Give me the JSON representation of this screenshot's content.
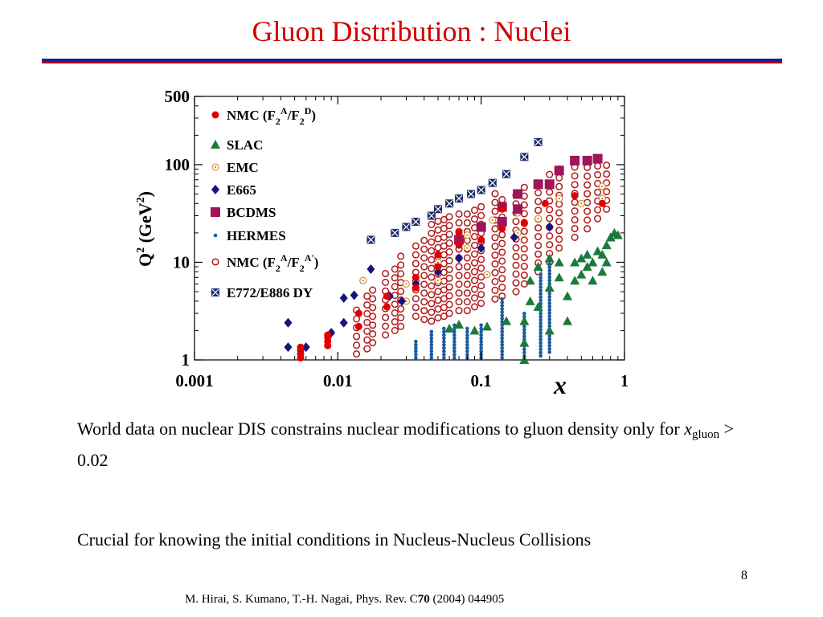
{
  "slide": {
    "title": "Gluon Distribution : Nuclei",
    "caption1_pre": "World data on nuclear DIS constrains nuclear modifications to gluon density only for ",
    "caption1_var": "x",
    "caption1_sub": "gluon",
    "caption1_post": " > 0.02",
    "caption2": "Crucial for knowing the initial conditions in Nucleus-Nucleus Collisions",
    "page_number": "8",
    "reference_pre": "M. Hirai, S. Kumano, T.-H. Nagai, Phys. Rev. C",
    "reference_vol": "70",
    "reference_post": " (2004) 044905"
  },
  "colors": {
    "title": "#d40000",
    "rule_top": "#1a1aa0",
    "rule_bottom": "#b00000",
    "NMC_ratio": "#e00000",
    "SLAC": "#1a7a3a",
    "EMC": "#d08a2a",
    "E665": "#14147a",
    "BCDMS": "#a0145a",
    "HERMES": "#1a5aa0",
    "NMC_AA": "#b01a1a",
    "DY": "#1a2a6a"
  },
  "chart_data": {
    "type": "scatter",
    "title": "",
    "xlabel": "x",
    "ylabel": "Q",
    "ylabel_sup": "2",
    "ylabel_unit_pre": " (GeV",
    "ylabel_unit_sup": "2",
    "ylabel_unit_post": ")",
    "x_scale": "log",
    "y_scale": "log",
    "xlim": [
      0.001,
      1
    ],
    "ylim": [
      1,
      500
    ],
    "x_ticks": [
      {
        "value": 0.001,
        "label": "0.001"
      },
      {
        "value": 0.01,
        "label": "0.01"
      },
      {
        "value": 0.1,
        "label": "0.1"
      },
      {
        "value": 1,
        "label": "1"
      }
    ],
    "y_ticks": [
      {
        "value": 1,
        "label": "1"
      },
      {
        "value": 10,
        "label": "10"
      },
      {
        "value": 100,
        "label": "100"
      },
      {
        "value": 500,
        "label": "500"
      }
    ],
    "legend_position": "left, inside plot",
    "series": [
      {
        "name": "NMC (F2A/F2D)",
        "label_main": "NMC (F",
        "label_tail": ")",
        "marker": "filled-circle",
        "color_key": "NMC_ratio",
        "points": [
          [
            0.0055,
            1.05
          ],
          [
            0.0055,
            1.15
          ],
          [
            0.0055,
            1.25
          ],
          [
            0.0055,
            1.35
          ],
          [
            0.0085,
            1.4
          ],
          [
            0.0085,
            1.55
          ],
          [
            0.0085,
            1.7
          ],
          [
            0.0085,
            1.8
          ],
          [
            0.014,
            2.2
          ],
          [
            0.014,
            3.0
          ],
          [
            0.022,
            3.5
          ],
          [
            0.022,
            4.5
          ],
          [
            0.035,
            5.5
          ],
          [
            0.035,
            7
          ],
          [
            0.05,
            9
          ],
          [
            0.05,
            12
          ],
          [
            0.07,
            15
          ],
          [
            0.07,
            20
          ],
          [
            0.1,
            17
          ],
          [
            0.14,
            22
          ],
          [
            0.14,
            35
          ],
          [
            0.2,
            25
          ],
          [
            0.28,
            40
          ],
          [
            0.45,
            48
          ],
          [
            0.7,
            40
          ]
        ]
      },
      {
        "name": "SLAC",
        "label_main": "SLAC",
        "marker": "triangle",
        "color_key": "SLAC",
        "points": [
          [
            0.06,
            2.1
          ],
          [
            0.07,
            2.3
          ],
          [
            0.09,
            2.0
          ],
          [
            0.11,
            2.2
          ],
          [
            0.15,
            2.5
          ],
          [
            0.2,
            1.0
          ],
          [
            0.2,
            1.5
          ],
          [
            0.2,
            2.5
          ],
          [
            0.22,
            4.0
          ],
          [
            0.22,
            6.5
          ],
          [
            0.25,
            3.5
          ],
          [
            0.25,
            9.0
          ],
          [
            0.3,
            2.0
          ],
          [
            0.3,
            5.5
          ],
          [
            0.3,
            11
          ],
          [
            0.35,
            7.0
          ],
          [
            0.35,
            10
          ],
          [
            0.4,
            2.5
          ],
          [
            0.4,
            4.5
          ],
          [
            0.45,
            6.5
          ],
          [
            0.45,
            10
          ],
          [
            0.5,
            7.5
          ],
          [
            0.5,
            11
          ],
          [
            0.55,
            9
          ],
          [
            0.55,
            12
          ],
          [
            0.6,
            6.5
          ],
          [
            0.6,
            10
          ],
          [
            0.65,
            13
          ],
          [
            0.7,
            8
          ],
          [
            0.7,
            12
          ],
          [
            0.75,
            10
          ],
          [
            0.75,
            15
          ],
          [
            0.8,
            18
          ],
          [
            0.85,
            20
          ],
          [
            0.9,
            19
          ]
        ]
      },
      {
        "name": "EMC",
        "label_main": "EMC",
        "marker": "dotted-circle",
        "color_key": "EMC",
        "points": [
          [
            0.015,
            6.5
          ],
          [
            0.03,
            6.0
          ],
          [
            0.03,
            4.0
          ],
          [
            0.05,
            6.5
          ],
          [
            0.05,
            10
          ],
          [
            0.08,
            14
          ],
          [
            0.08,
            19
          ],
          [
            0.11,
            7.5
          ],
          [
            0.12,
            27
          ],
          [
            0.18,
            20
          ],
          [
            0.18,
            32
          ],
          [
            0.25,
            28
          ],
          [
            0.35,
            45
          ],
          [
            0.5,
            40
          ],
          [
            0.7,
            60
          ],
          [
            0.7,
            45
          ]
        ]
      },
      {
        "name": "E665",
        "label_main": "E665",
        "marker": "diamond",
        "color_key": "E665",
        "points": [
          [
            0.0045,
            2.4
          ],
          [
            0.0045,
            1.35
          ],
          [
            0.006,
            1.35
          ],
          [
            0.009,
            1.9
          ],
          [
            0.011,
            2.4
          ],
          [
            0.011,
            4.3
          ],
          [
            0.013,
            4.6
          ],
          [
            0.017,
            8.5
          ],
          [
            0.023,
            4.5
          ],
          [
            0.028,
            4.0
          ],
          [
            0.035,
            6.0
          ],
          [
            0.05,
            8.0
          ],
          [
            0.07,
            11
          ],
          [
            0.1,
            14
          ],
          [
            0.17,
            18
          ],
          [
            0.3,
            23
          ]
        ]
      },
      {
        "name": "BCDMS",
        "label_main": "BCDMS",
        "marker": "square",
        "color_key": "BCDMS",
        "points": [
          [
            0.07,
            17
          ],
          [
            0.1,
            23
          ],
          [
            0.14,
            26
          ],
          [
            0.14,
            37
          ],
          [
            0.18,
            35
          ],
          [
            0.18,
            50
          ],
          [
            0.25,
            63
          ],
          [
            0.3,
            63
          ],
          [
            0.35,
            87
          ],
          [
            0.45,
            110
          ],
          [
            0.55,
            110
          ],
          [
            0.65,
            115
          ]
        ]
      },
      {
        "name": "HERMES",
        "label_main": "HERMES",
        "marker": "small-dot",
        "color_key": "HERMES",
        "columns": [
          {
            "x": 0.035,
            "ymin": 1.05,
            "ymax": 1.6
          },
          {
            "x": 0.045,
            "ymin": 1.05,
            "ymax": 2.0
          },
          {
            "x": 0.055,
            "ymin": 1.05,
            "ymax": 2.2
          },
          {
            "x": 0.065,
            "ymin": 1.05,
            "ymax": 2.4
          },
          {
            "x": 0.08,
            "ymin": 1.05,
            "ymax": 2.2
          },
          {
            "x": 0.1,
            "ymin": 1.05,
            "ymax": 2.3
          },
          {
            "x": 0.14,
            "ymin": 1.05,
            "ymax": 4.5
          },
          {
            "x": 0.2,
            "ymin": 1.1,
            "ymax": 3.0
          },
          {
            "x": 0.26,
            "ymin": 1.1,
            "ymax": 8.0
          },
          {
            "x": 0.3,
            "ymin": 1.2,
            "ymax": 12
          }
        ]
      },
      {
        "name": "NMC (F2A/F2A')",
        "label_main": "NMC (F",
        "label_tail": ")",
        "marker": "open-circle",
        "color_key": "NMC_AA",
        "grid": {
          "x": [
            0.0135,
            0.016,
            0.0175,
            0.0215,
            0.025,
            0.0275,
            0.035,
            0.04,
            0.045,
            0.05,
            0.055,
            0.06,
            0.07,
            0.08,
            0.09,
            0.1,
            0.125,
            0.14,
            0.175,
            0.2,
            0.25,
            0.3,
            0.35,
            0.45,
            0.55,
            0.65,
            0.75
          ],
          "ymin": [
            1.15,
            1.3,
            1.5,
            1.8,
            2.0,
            2.2,
            2.8,
            2.6,
            2.5,
            2.7,
            2.8,
            3.0,
            3.2,
            3.2,
            3.5,
            3.8,
            4.2,
            4.5,
            5.0,
            6.0,
            8.0,
            10,
            14,
            18,
            22,
            28,
            35
          ],
          "ymax": [
            3.5,
            4.5,
            6,
            8,
            10,
            12,
            18,
            20,
            25,
            28,
            30,
            32,
            33,
            35,
            38,
            42,
            60,
            45,
            55,
            65,
            75,
            80,
            100,
            110,
            110,
            110,
            100
          ],
          "step": 1.23
        }
      },
      {
        "name": "E772/E886 DY",
        "label_main": "E772/E886 DY",
        "marker": "crossed-square",
        "color_key": "DY",
        "points": [
          [
            0.017,
            17
          ],
          [
            0.025,
            20
          ],
          [
            0.03,
            23
          ],
          [
            0.035,
            26
          ],
          [
            0.045,
            30
          ],
          [
            0.05,
            35
          ],
          [
            0.06,
            40
          ],
          [
            0.07,
            45
          ],
          [
            0.085,
            50
          ],
          [
            0.1,
            55
          ],
          [
            0.12,
            65
          ],
          [
            0.15,
            80
          ],
          [
            0.2,
            120
          ],
          [
            0.25,
            170
          ]
        ]
      }
    ]
  }
}
